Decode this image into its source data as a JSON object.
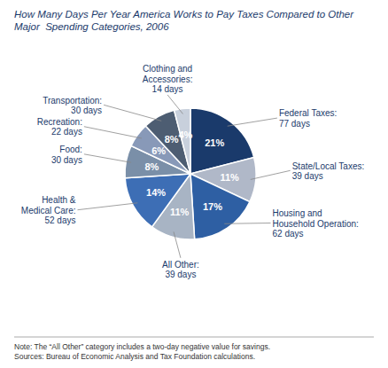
{
  "chart_data": {
    "type": "pie",
    "title": "How Many Days Per Year America Works to Pay Taxes Compared to Other\nMajor  Spending Categories, 2006",
    "categories": [
      "Federal Taxes:\n77 days",
      "State/Local Taxes:\n39 days",
      "Housing and\nHousehold Operation:\n62 days",
      "All Other:\n39 days",
      "Health &\nMedical Care:\n52 days",
      "Food:\n30 days",
      "Recreation:\n22 days",
      "Transportation:\n30 days",
      "Clothing and\nAccessories:\n14 days"
    ],
    "values": [
      21,
      11,
      17,
      11,
      14,
      8,
      6,
      8,
      4
    ],
    "value_labels": [
      "21%",
      "11%",
      "17%",
      "11%",
      "14%",
      "8%",
      "6%",
      "8%",
      "4%"
    ],
    "colors": [
      "#1a3a6b",
      "#b0b8c8",
      "#2e5fa3",
      "#a8b4c4",
      "#3d6eb5",
      "#7a8fa8",
      "#8899b8",
      "#4d5d72",
      "#c8d0dc"
    ],
    "data_labels": true,
    "annotations": [
      "Note: The “All Other” category includes a two-day negative value for savings.\nSources: Bureau of Economic Analysis and Tax Foundation calculations."
    ]
  }
}
